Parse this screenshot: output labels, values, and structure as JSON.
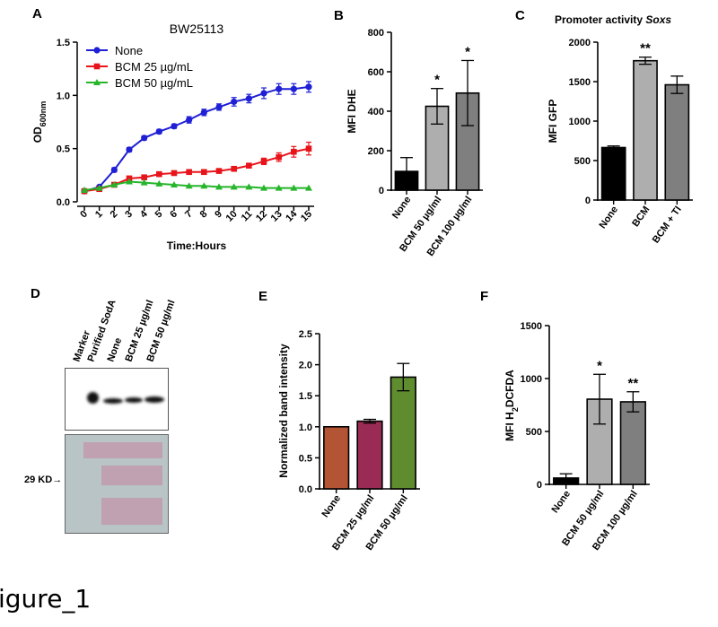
{
  "figure_label": "igure_1",
  "chart_data": [
    {
      "panel": "A",
      "type": "line",
      "title": "BW25113",
      "xlabel": "Time:Hours",
      "ylabel_main": "OD",
      "ylabel_sub": "600nm",
      "x": [
        0,
        1,
        2,
        3,
        4,
        5,
        6,
        7,
        8,
        9,
        10,
        11,
        12,
        13,
        14,
        15
      ],
      "ylim": [
        0,
        1.5
      ],
      "yticks": [
        "0.0",
        "0.5",
        "1.0",
        "1.5"
      ],
      "legend_position": "top-left",
      "series": [
        {
          "name": "None",
          "color": "#1f1fd6",
          "marker": "circle",
          "values": [
            0.1,
            0.14,
            0.3,
            0.49,
            0.6,
            0.66,
            0.71,
            0.77,
            0.84,
            0.89,
            0.94,
            0.97,
            1.02,
            1.06,
            1.06,
            1.08
          ],
          "errors": [
            0.01,
            0.01,
            0.02,
            0.02,
            0.02,
            0.02,
            0.02,
            0.03,
            0.03,
            0.03,
            0.04,
            0.04,
            0.05,
            0.05,
            0.05,
            0.05
          ]
        },
        {
          "name": "BCM 25 µg/mL",
          "color": "#e8141b",
          "marker": "square",
          "values": [
            0.1,
            0.12,
            0.16,
            0.22,
            0.23,
            0.26,
            0.27,
            0.28,
            0.28,
            0.29,
            0.31,
            0.34,
            0.38,
            0.42,
            0.47,
            0.5
          ],
          "errors": [
            0.01,
            0.01,
            0.01,
            0.01,
            0.01,
            0.01,
            0.01,
            0.01,
            0.01,
            0.01,
            0.02,
            0.02,
            0.03,
            0.04,
            0.05,
            0.06
          ]
        },
        {
          "name": "BCM 50 µg/mL",
          "color": "#26b52b",
          "marker": "triangle",
          "values": [
            0.11,
            0.13,
            0.16,
            0.19,
            0.18,
            0.17,
            0.16,
            0.15,
            0.15,
            0.14,
            0.14,
            0.14,
            0.13,
            0.13,
            0.13,
            0.13
          ],
          "errors": [
            0.01,
            0.01,
            0.01,
            0.01,
            0.01,
            0.01,
            0.01,
            0.01,
            0.01,
            0.01,
            0.01,
            0.01,
            0.01,
            0.01,
            0.01,
            0.01
          ]
        }
      ]
    },
    {
      "panel": "B",
      "type": "bar",
      "ylabel": "MFI DHE",
      "ylim": [
        0,
        800
      ],
      "yticks": [
        "0",
        "200",
        "400",
        "600",
        "800"
      ],
      "categories": [
        "None",
        "BCM 50 µg/ml",
        "BCM 100 µg/ml"
      ],
      "values": [
        95,
        425,
        492
      ],
      "errors": [
        70,
        90,
        165
      ],
      "colors": [
        "#000000",
        "#aeaeae",
        "#7f7f7f"
      ],
      "annotations": [
        "",
        "*",
        "*"
      ]
    },
    {
      "panel": "C",
      "type": "bar",
      "title": "Promoter activity ",
      "title_italic": "Soxs",
      "ylabel": "MFI GFP",
      "ylim": [
        0,
        2000
      ],
      "yticks": [
        "0",
        "500",
        "1000",
        "1500",
        "2000"
      ],
      "categories": [
        "None",
        "BCM",
        "BCM + TI"
      ],
      "values": [
        665,
        1765,
        1460
      ],
      "errors": [
        20,
        45,
        110
      ],
      "colors": [
        "#000000",
        "#aeaeae",
        "#7f7f7f"
      ],
      "annotations": [
        "",
        "**",
        ""
      ]
    },
    {
      "panel": "E",
      "type": "bar",
      "ylabel": "Normalized band intensity",
      "ylim": [
        0,
        2.5
      ],
      "yticks": [
        "0.0",
        "0.5",
        "1.0",
        "1.5",
        "2.0",
        "2.5"
      ],
      "categories": [
        "None",
        "BCM 25 µg/ml",
        "BCM 50 µg/ml"
      ],
      "values": [
        1.0,
        1.09,
        1.8
      ],
      "errors": [
        0,
        0.03,
        0.22
      ],
      "colors": [
        "#b35535",
        "#9a2b54",
        "#5f8c2f"
      ],
      "annotations": [
        "",
        "",
        ""
      ]
    },
    {
      "panel": "F",
      "type": "bar",
      "ylabel_main": "MFI H",
      "ylabel_sub": "2",
      "ylabel_rest": "DCFDA",
      "ylim": [
        0,
        1500
      ],
      "yticks": [
        "0",
        "500",
        "1000",
        "1500"
      ],
      "categories": [
        "None",
        "BCM 50 µg/ml",
        "BCM 100 µg/ml"
      ],
      "values": [
        60,
        805,
        780
      ],
      "errors": [
        40,
        235,
        95
      ],
      "colors": [
        "#000000",
        "#aeaeae",
        "#7f7f7f"
      ],
      "annotations": [
        "",
        "*",
        "**"
      ]
    }
  ],
  "panel_d": {
    "label": "D",
    "lanes": [
      "Marker",
      "Purified SodA",
      "None",
      "BCM 25 µg/ml",
      "BCM 50 µg/ml"
    ],
    "marker_label": "29 KD",
    "arrow": "→"
  }
}
